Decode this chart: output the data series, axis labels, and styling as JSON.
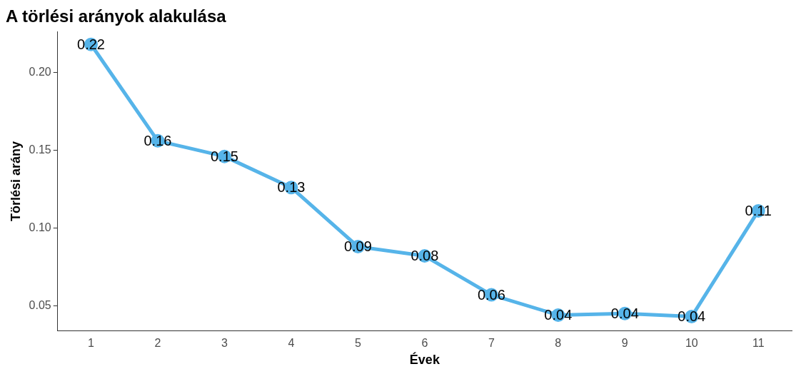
{
  "chart_data": {
    "type": "line",
    "title": "A törlési arányok alakulása",
    "xlabel": "Évek",
    "ylabel": "Törlési arány",
    "categories": [
      "1",
      "2",
      "3",
      "4",
      "5",
      "6",
      "7",
      "8",
      "9",
      "10",
      "11"
    ],
    "series": [
      {
        "color": "#56b4e9",
        "values": [
          0.218,
          0.156,
          0.146,
          0.126,
          0.088,
          0.082,
          0.057,
          0.044,
          0.045,
          0.043,
          0.111
        ],
        "value_labels": [
          "0.22",
          "0.16",
          "0.15",
          "0.13",
          "0.09",
          "0.08",
          "0.06",
          "0.04",
          "0.04",
          "0.04",
          "0.11"
        ]
      }
    ],
    "ylim": [
      0.034,
      0.226
    ],
    "yticks": [
      {
        "value": 0.05,
        "label": "0.05"
      },
      {
        "value": 0.1,
        "label": "0.10"
      },
      {
        "value": 0.15,
        "label": "0.15"
      },
      {
        "value": 0.2,
        "label": "0.20"
      }
    ],
    "grid": false,
    "legend": false,
    "marker": "circle",
    "line_style": "solid"
  }
}
